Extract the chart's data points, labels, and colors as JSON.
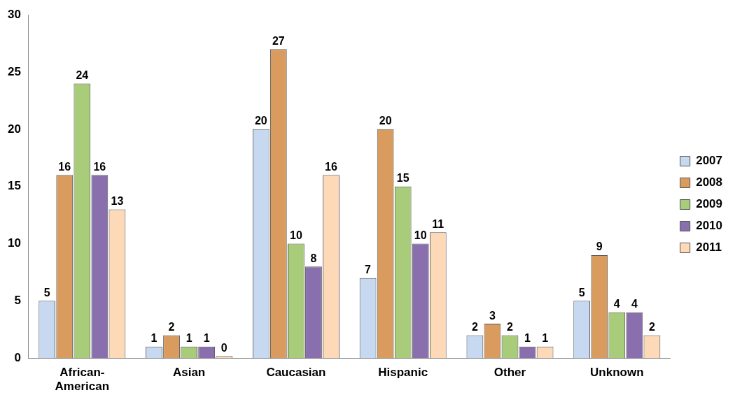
{
  "chart_data": {
    "type": "bar",
    "categories": [
      "African-American",
      "Asian",
      "Caucasian",
      "Hispanic",
      "Other",
      "Unknown"
    ],
    "series": [
      {
        "name": "2007",
        "color": "#c6d9f0",
        "values": [
          5,
          1,
          20,
          7,
          2,
          5
        ]
      },
      {
        "name": "2008",
        "color": "#d99b5e",
        "values": [
          16,
          2,
          27,
          20,
          3,
          9
        ]
      },
      {
        "name": "2009",
        "color": "#a9cc7a",
        "values": [
          24,
          1,
          10,
          15,
          2,
          4
        ]
      },
      {
        "name": "2010",
        "color": "#8a6fae",
        "values": [
          16,
          1,
          8,
          10,
          1,
          4
        ]
      },
      {
        "name": "2011",
        "color": "#fdd9b8",
        "values": [
          13,
          0,
          16,
          11,
          1,
          2
        ]
      }
    ],
    "ylim": [
      0,
      30
    ],
    "yticks": [
      0,
      5,
      10,
      15,
      20,
      25,
      30
    ],
    "grid": false,
    "legend": "right",
    "data_labels": true
  }
}
